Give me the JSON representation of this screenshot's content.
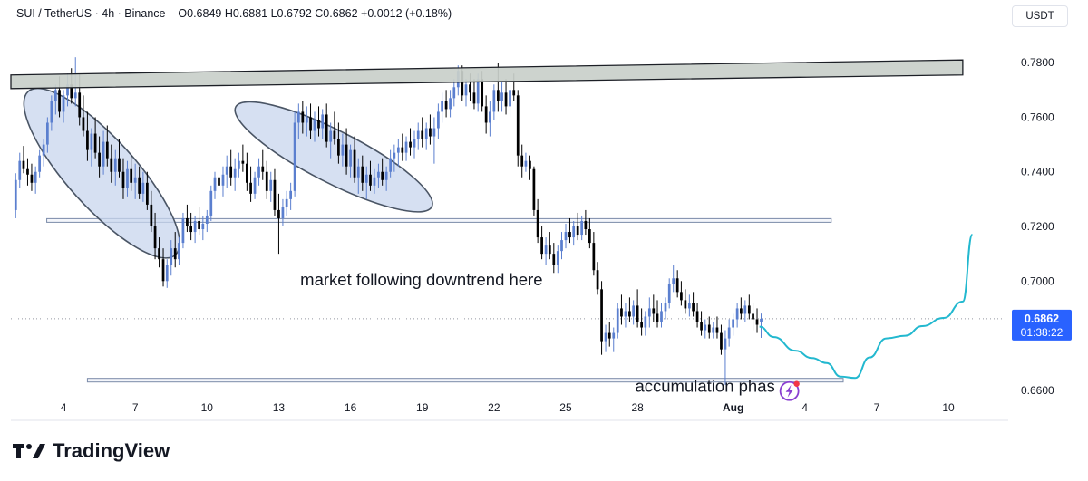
{
  "header": {
    "symbol": "SUI / TetherUS",
    "interval": "4h",
    "exchange": "Binance",
    "open": "O0.6849",
    "high": "H0.6881",
    "low": "L0.6792",
    "close": "C0.6862",
    "change": "+0.0012 (+0.18%)"
  },
  "currency_button": "USDT",
  "logo_text": "TradingView",
  "annotations": {
    "downtrend": "market following downtrend here",
    "accumulation": "accumulation phas"
  },
  "price_tag": {
    "price": "0.6862",
    "countdown": "01:38:22"
  },
  "colors": {
    "up": "#5b7fcf",
    "down": "#000000",
    "projection": "#22b8cf",
    "ellipse_fill": "#c8d6ee",
    "resistance_fill": "#c9cfca",
    "price_tag": "#2962ff"
  },
  "chart_data": {
    "type": "candlestick",
    "y_axis_side": "right",
    "ylim": [
      0.649,
      0.793
    ],
    "y_ticks": [
      "0.7800",
      "0.7600",
      "0.7400",
      "0.7200",
      "0.7000",
      "0.6800",
      "0.6600"
    ],
    "y_tick_values": [
      0.78,
      0.76,
      0.74,
      0.72,
      0.7,
      0.68,
      0.66
    ],
    "x_ticks": [
      "4",
      "7",
      "10",
      "13",
      "16",
      "19",
      "22",
      "25",
      "28",
      "Aug",
      "4",
      "7",
      "10"
    ],
    "x_tick_days": [
      4,
      7,
      10,
      13,
      16,
      19,
      22,
      25,
      28,
      32,
      35,
      38,
      41
    ],
    "xlim_days": [
      1.8,
      43.5
    ],
    "last_price": 0.6862,
    "resistance_zone": {
      "x_days": [
        1.8,
        41.6
      ],
      "left": [
        0.7755,
        0.7705
      ],
      "right": [
        0.781,
        0.7755
      ]
    },
    "support_lines": [
      {
        "x_days": [
          3.3,
          36.1
        ],
        "y": 0.7222
      },
      {
        "x_days": [
          5.0,
          36.6
        ],
        "y": 0.6637
      }
    ],
    "ellipses": [
      {
        "cx_day": 5.6,
        "cy": 0.7395,
        "rx_days": 4.6,
        "ry": 0.0125,
        "angle": 48
      },
      {
        "cx_day": 15.3,
        "cy": 0.7455,
        "rx_days": 4.6,
        "ry": 0.0095,
        "angle": 27
      }
    ],
    "projection": [
      [
        33.1,
        0.6833
      ],
      [
        33.7,
        0.6795
      ],
      [
        34.6,
        0.6745
      ],
      [
        35.3,
        0.6718
      ],
      [
        35.9,
        0.67
      ],
      [
        36.5,
        0.665
      ],
      [
        37.1,
        0.6645
      ],
      [
        37.7,
        0.672
      ],
      [
        38.4,
        0.679
      ],
      [
        39.2,
        0.68
      ],
      [
        39.9,
        0.6835
      ],
      [
        40.8,
        0.6865
      ],
      [
        41.6,
        0.6925
      ],
      [
        42.0,
        0.717
      ]
    ],
    "alert_icon": {
      "day": 34.35,
      "y": 0.6597
    },
    "text_positions": {
      "downtrend": {
        "day": 13.9,
        "y": 0.6985
      },
      "accumulation": {
        "day": 27.9,
        "y": 0.6595
      }
    },
    "candles_ohlc": [
      [
        2.0,
        0.726,
        0.7395,
        0.723,
        0.737
      ],
      [
        2.17,
        0.737,
        0.747,
        0.734,
        0.744
      ],
      [
        2.33,
        0.744,
        0.7495,
        0.7395,
        0.741
      ],
      [
        2.5,
        0.741,
        0.745,
        0.735,
        0.739
      ],
      [
        2.67,
        0.739,
        0.743,
        0.733,
        0.736
      ],
      [
        2.83,
        0.736,
        0.742,
        0.732,
        0.74
      ],
      [
        3.0,
        0.74,
        0.748,
        0.738,
        0.746
      ],
      [
        3.17,
        0.746,
        0.752,
        0.742,
        0.75
      ],
      [
        3.33,
        0.75,
        0.76,
        0.747,
        0.758
      ],
      [
        3.5,
        0.758,
        0.768,
        0.755,
        0.766
      ],
      [
        3.67,
        0.766,
        0.772,
        0.761,
        0.77
      ],
      [
        3.83,
        0.77,
        0.775,
        0.76,
        0.762
      ],
      [
        4.0,
        0.762,
        0.77,
        0.758,
        0.768
      ],
      [
        4.17,
        0.768,
        0.776,
        0.764,
        0.772
      ],
      [
        4.33,
        0.772,
        0.778,
        0.765,
        0.767
      ],
      [
        4.5,
        0.767,
        0.782,
        0.764,
        0.769
      ],
      [
        4.67,
        0.769,
        0.776,
        0.757,
        0.76
      ],
      [
        4.83,
        0.76,
        0.768,
        0.753,
        0.755
      ],
      [
        5.0,
        0.755,
        0.762,
        0.744,
        0.748
      ],
      [
        5.17,
        0.748,
        0.756,
        0.742,
        0.754
      ],
      [
        5.33,
        0.754,
        0.76,
        0.745,
        0.747
      ],
      [
        5.5,
        0.747,
        0.753,
        0.738,
        0.742
      ],
      [
        5.67,
        0.742,
        0.755,
        0.739,
        0.751
      ],
      [
        5.83,
        0.751,
        0.757,
        0.742,
        0.745
      ],
      [
        6.0,
        0.745,
        0.75,
        0.736,
        0.74
      ],
      [
        6.17,
        0.74,
        0.748,
        0.735,
        0.745
      ],
      [
        6.33,
        0.745,
        0.752,
        0.738,
        0.74
      ],
      [
        6.5,
        0.74,
        0.745,
        0.73,
        0.734
      ],
      [
        6.67,
        0.734,
        0.744,
        0.731,
        0.741
      ],
      [
        6.83,
        0.741,
        0.746,
        0.733,
        0.736
      ],
      [
        7.0,
        0.736,
        0.743,
        0.73,
        0.738
      ],
      [
        7.17,
        0.738,
        0.742,
        0.73,
        0.732
      ],
      [
        7.33,
        0.732,
        0.74,
        0.729,
        0.736
      ],
      [
        7.5,
        0.736,
        0.74,
        0.726,
        0.728
      ],
      [
        7.67,
        0.728,
        0.733,
        0.718,
        0.72
      ],
      [
        7.83,
        0.72,
        0.725,
        0.708,
        0.712
      ],
      [
        8.0,
        0.712,
        0.716,
        0.705,
        0.708
      ],
      [
        8.17,
        0.708,
        0.712,
        0.698,
        0.7
      ],
      [
        8.33,
        0.7,
        0.708,
        0.6975,
        0.706
      ],
      [
        8.5,
        0.706,
        0.715,
        0.702,
        0.712
      ],
      [
        8.67,
        0.712,
        0.718,
        0.705,
        0.708
      ],
      [
        8.83,
        0.708,
        0.716,
        0.706,
        0.714
      ],
      [
        9.0,
        0.714,
        0.725,
        0.712,
        0.723
      ],
      [
        9.17,
        0.723,
        0.728,
        0.718,
        0.72
      ],
      [
        9.33,
        0.72,
        0.725,
        0.715,
        0.718
      ],
      [
        9.5,
        0.718,
        0.724,
        0.714,
        0.722
      ],
      [
        9.67,
        0.722,
        0.727,
        0.717,
        0.719
      ],
      [
        9.83,
        0.719,
        0.724,
        0.715,
        0.721
      ],
      [
        10.0,
        0.721,
        0.726,
        0.718,
        0.724
      ],
      [
        10.17,
        0.724,
        0.735,
        0.722,
        0.733
      ],
      [
        10.33,
        0.733,
        0.74,
        0.73,
        0.738
      ],
      [
        10.5,
        0.738,
        0.744,
        0.732,
        0.735
      ],
      [
        10.67,
        0.735,
        0.742,
        0.731,
        0.739
      ],
      [
        10.83,
        0.739,
        0.746,
        0.734,
        0.742
      ],
      [
        11.0,
        0.742,
        0.748,
        0.735,
        0.738
      ],
      [
        11.17,
        0.738,
        0.745,
        0.733,
        0.741
      ],
      [
        11.33,
        0.741,
        0.747,
        0.738,
        0.744
      ],
      [
        11.5,
        0.744,
        0.75,
        0.74,
        0.743
      ],
      [
        11.67,
        0.743,
        0.747,
        0.733,
        0.736
      ],
      [
        11.83,
        0.736,
        0.742,
        0.729,
        0.732
      ],
      [
        12.0,
        0.732,
        0.74,
        0.73,
        0.738
      ],
      [
        12.17,
        0.738,
        0.745,
        0.735,
        0.742
      ],
      [
        12.33,
        0.742,
        0.748,
        0.737,
        0.74
      ],
      [
        12.5,
        0.74,
        0.744,
        0.73,
        0.733
      ],
      [
        12.67,
        0.733,
        0.74,
        0.729,
        0.737
      ],
      [
        12.83,
        0.737,
        0.741,
        0.724,
        0.726
      ],
      [
        13.0,
        0.726,
        0.732,
        0.71,
        0.723
      ],
      [
        13.17,
        0.723,
        0.73,
        0.72,
        0.727
      ],
      [
        13.33,
        0.727,
        0.733,
        0.724,
        0.73
      ],
      [
        13.5,
        0.73,
        0.736,
        0.726,
        0.733
      ],
      [
        13.67,
        0.733,
        0.762,
        0.731,
        0.758
      ],
      [
        13.83,
        0.758,
        0.765,
        0.752,
        0.762
      ],
      [
        14.0,
        0.762,
        0.766,
        0.754,
        0.758
      ],
      [
        14.17,
        0.758,
        0.764,
        0.753,
        0.76
      ],
      [
        14.33,
        0.76,
        0.765,
        0.752,
        0.755
      ],
      [
        14.5,
        0.755,
        0.762,
        0.751,
        0.759
      ],
      [
        14.67,
        0.759,
        0.764,
        0.753,
        0.756
      ],
      [
        14.83,
        0.756,
        0.763,
        0.752,
        0.761
      ],
      [
        15.0,
        0.761,
        0.765,
        0.749,
        0.751
      ],
      [
        15.17,
        0.751,
        0.758,
        0.745,
        0.755
      ],
      [
        15.33,
        0.755,
        0.762,
        0.75,
        0.752
      ],
      [
        15.5,
        0.752,
        0.758,
        0.743,
        0.746
      ],
      [
        15.67,
        0.746,
        0.754,
        0.742,
        0.75
      ],
      [
        15.83,
        0.75,
        0.756,
        0.739,
        0.742
      ],
      [
        16.0,
        0.742,
        0.75,
        0.738,
        0.748
      ],
      [
        16.17,
        0.748,
        0.753,
        0.736,
        0.738
      ],
      [
        16.33,
        0.738,
        0.745,
        0.732,
        0.742
      ],
      [
        16.5,
        0.742,
        0.746,
        0.733,
        0.736
      ],
      [
        16.67,
        0.736,
        0.742,
        0.73,
        0.739
      ],
      [
        16.83,
        0.739,
        0.744,
        0.733,
        0.735
      ],
      [
        17.0,
        0.735,
        0.741,
        0.732,
        0.738
      ],
      [
        17.17,
        0.738,
        0.743,
        0.734,
        0.74
      ],
      [
        17.33,
        0.74,
        0.745,
        0.735,
        0.737
      ],
      [
        17.5,
        0.737,
        0.742,
        0.733,
        0.74
      ],
      [
        17.67,
        0.74,
        0.748,
        0.738,
        0.745
      ],
      [
        17.83,
        0.745,
        0.75,
        0.74,
        0.747
      ],
      [
        18.0,
        0.747,
        0.752,
        0.742,
        0.749
      ],
      [
        18.17,
        0.749,
        0.754,
        0.744,
        0.747
      ],
      [
        18.33,
        0.747,
        0.753,
        0.744,
        0.751
      ],
      [
        18.5,
        0.751,
        0.756,
        0.746,
        0.749
      ],
      [
        18.67,
        0.749,
        0.755,
        0.745,
        0.752
      ],
      [
        18.83,
        0.752,
        0.758,
        0.748,
        0.755
      ],
      [
        19.0,
        0.755,
        0.76,
        0.749,
        0.752
      ],
      [
        19.17,
        0.752,
        0.758,
        0.748,
        0.756
      ],
      [
        19.33,
        0.756,
        0.761,
        0.75,
        0.753
      ],
      [
        19.5,
        0.753,
        0.76,
        0.743,
        0.756
      ],
      [
        19.67,
        0.756,
        0.765,
        0.752,
        0.762
      ],
      [
        19.83,
        0.762,
        0.769,
        0.758,
        0.766
      ],
      [
        20.0,
        0.766,
        0.77,
        0.76,
        0.763
      ],
      [
        20.17,
        0.763,
        0.77,
        0.76,
        0.767
      ],
      [
        20.33,
        0.767,
        0.774,
        0.764,
        0.771
      ],
      [
        20.5,
        0.771,
        0.779,
        0.768,
        0.777
      ],
      [
        20.67,
        0.777,
        0.779,
        0.766,
        0.768
      ],
      [
        20.83,
        0.768,
        0.774,
        0.764,
        0.772
      ],
      [
        21.0,
        0.772,
        0.776,
        0.766,
        0.769
      ],
      [
        21.17,
        0.769,
        0.774,
        0.763,
        0.765
      ],
      [
        21.33,
        0.765,
        0.776,
        0.762,
        0.774
      ],
      [
        21.5,
        0.774,
        0.777,
        0.762,
        0.764
      ],
      [
        21.67,
        0.764,
        0.768,
        0.754,
        0.758
      ],
      [
        21.83,
        0.758,
        0.766,
        0.753,
        0.762
      ],
      [
        22.0,
        0.762,
        0.772,
        0.759,
        0.77
      ],
      [
        22.17,
        0.77,
        0.78,
        0.762,
        0.766
      ],
      [
        22.33,
        0.766,
        0.773,
        0.762,
        0.769
      ],
      [
        22.5,
        0.769,
        0.774,
        0.761,
        0.764
      ],
      [
        22.67,
        0.764,
        0.772,
        0.76,
        0.77
      ],
      [
        22.83,
        0.77,
        0.776,
        0.766,
        0.768
      ],
      [
        23.0,
        0.768,
        0.77,
        0.742,
        0.746
      ],
      [
        23.17,
        0.746,
        0.75,
        0.738,
        0.742
      ],
      [
        23.33,
        0.742,
        0.747,
        0.74,
        0.744
      ],
      [
        23.5,
        0.744,
        0.746,
        0.737,
        0.741
      ],
      [
        23.67,
        0.741,
        0.742,
        0.724,
        0.726
      ],
      [
        23.83,
        0.726,
        0.73,
        0.714,
        0.716
      ],
      [
        24.0,
        0.716,
        0.72,
        0.708,
        0.71
      ],
      [
        24.17,
        0.71,
        0.716,
        0.706,
        0.713
      ],
      [
        24.33,
        0.713,
        0.718,
        0.708,
        0.71
      ],
      [
        24.5,
        0.71,
        0.714,
        0.703,
        0.706
      ],
      [
        24.67,
        0.706,
        0.713,
        0.703,
        0.711
      ],
      [
        24.83,
        0.711,
        0.718,
        0.708,
        0.715
      ],
      [
        25.0,
        0.715,
        0.721,
        0.712,
        0.718
      ],
      [
        25.17,
        0.718,
        0.723,
        0.714,
        0.716
      ],
      [
        25.33,
        0.716,
        0.722,
        0.713,
        0.72
      ],
      [
        25.5,
        0.72,
        0.725,
        0.715,
        0.717
      ],
      [
        25.67,
        0.717,
        0.724,
        0.715,
        0.722
      ],
      [
        25.83,
        0.722,
        0.726,
        0.717,
        0.719
      ],
      [
        26.0,
        0.719,
        0.723,
        0.712,
        0.714
      ],
      [
        26.17,
        0.714,
        0.718,
        0.702,
        0.704
      ],
      [
        26.33,
        0.704,
        0.707,
        0.695,
        0.697
      ],
      [
        26.5,
        0.697,
        0.7,
        0.673,
        0.678
      ],
      [
        26.67,
        0.678,
        0.684,
        0.674,
        0.681
      ],
      [
        26.83,
        0.681,
        0.685,
        0.676,
        0.679
      ],
      [
        27.0,
        0.679,
        0.683,
        0.674,
        0.681
      ],
      [
        27.17,
        0.681,
        0.692,
        0.679,
        0.69
      ],
      [
        27.33,
        0.69,
        0.695,
        0.684,
        0.687
      ],
      [
        27.5,
        0.687,
        0.692,
        0.683,
        0.689
      ],
      [
        27.67,
        0.689,
        0.694,
        0.685,
        0.687
      ],
      [
        27.83,
        0.687,
        0.693,
        0.684,
        0.691
      ],
      [
        28.0,
        0.691,
        0.697,
        0.683,
        0.685
      ],
      [
        28.17,
        0.685,
        0.69,
        0.68,
        0.683
      ],
      [
        28.33,
        0.683,
        0.689,
        0.68,
        0.687
      ],
      [
        28.5,
        0.687,
        0.694,
        0.683,
        0.69
      ],
      [
        28.67,
        0.69,
        0.695,
        0.685,
        0.688
      ],
      [
        28.83,
        0.688,
        0.693,
        0.683,
        0.685
      ],
      [
        29.0,
        0.685,
        0.692,
        0.683,
        0.689
      ],
      [
        29.17,
        0.689,
        0.694,
        0.686,
        0.692
      ],
      [
        29.33,
        0.692,
        0.701,
        0.69,
        0.699
      ],
      [
        29.5,
        0.699,
        0.706,
        0.696,
        0.701
      ],
      [
        29.67,
        0.701,
        0.704,
        0.694,
        0.696
      ],
      [
        29.83,
        0.696,
        0.7,
        0.691,
        0.693
      ],
      [
        30.0,
        0.693,
        0.697,
        0.688,
        0.69
      ],
      [
        30.17,
        0.69,
        0.695,
        0.687,
        0.692
      ],
      [
        30.33,
        0.692,
        0.696,
        0.687,
        0.689
      ],
      [
        30.5,
        0.689,
        0.692,
        0.683,
        0.685
      ],
      [
        30.67,
        0.685,
        0.689,
        0.68,
        0.682
      ],
      [
        30.83,
        0.682,
        0.686,
        0.679,
        0.684
      ],
      [
        31.0,
        0.684,
        0.687,
        0.679,
        0.681
      ],
      [
        31.17,
        0.681,
        0.685,
        0.679,
        0.683
      ],
      [
        31.33,
        0.683,
        0.687,
        0.679,
        0.681
      ],
      [
        31.5,
        0.681,
        0.684,
        0.673,
        0.675
      ],
      [
        31.67,
        0.675,
        0.682,
        0.662,
        0.679
      ],
      [
        31.83,
        0.679,
        0.686,
        0.676,
        0.683
      ],
      [
        32.0,
        0.683,
        0.688,
        0.68,
        0.686
      ],
      [
        32.17,
        0.686,
        0.692,
        0.683,
        0.69
      ],
      [
        32.33,
        0.69,
        0.694,
        0.686,
        0.688
      ],
      [
        32.5,
        0.688,
        0.693,
        0.685,
        0.691
      ],
      [
        32.67,
        0.691,
        0.695,
        0.686,
        0.688
      ],
      [
        32.83,
        0.688,
        0.692,
        0.682,
        0.686
      ],
      [
        33.0,
        0.686,
        0.69,
        0.681,
        0.684
      ],
      [
        33.17,
        0.6849,
        0.6881,
        0.6792,
        0.6862
      ]
    ]
  }
}
